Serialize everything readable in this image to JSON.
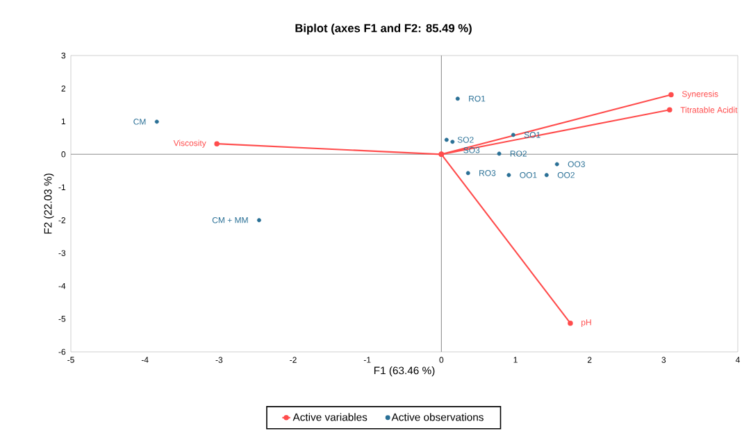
{
  "chart_data": {
    "type": "scatter",
    "title": "Biplot (axes F1 and F2: 85.49 %)",
    "xlabel": "F1 (63.46 %)",
    "ylabel": "F2 (22.03 %)",
    "xlim": [
      -5,
      4
    ],
    "ylim": [
      -6,
      3
    ],
    "xticks": [
      -5,
      -4,
      -3,
      -2,
      -1,
      0,
      1,
      2,
      3,
      4
    ],
    "yticks": [
      -6,
      -5,
      -4,
      -3,
      -2,
      -1,
      0,
      1,
      2,
      3
    ],
    "legend": "bottom",
    "marker": "circle",
    "series": [
      {
        "type": "line",
        "name": "Active variables",
        "color": "#ff4d4d",
        "x": [
          3.1,
          0,
          3.08,
          0,
          -3.03,
          0,
          1.74
        ],
        "values": [
          1.81,
          0,
          1.35,
          0,
          0.32,
          0,
          -5.13
        ],
        "value_labels": [
          "Syneresis",
          null,
          "Titratable Acidit",
          null,
          "Viscosity",
          null,
          "pH"
        ]
      },
      {
        "type": "scatter",
        "name": "Active observations",
        "color": "#2a7096",
        "x": [
          -3.84,
          -2.46,
          0.22,
          0.07,
          0.15,
          0.97,
          0.78,
          1.56,
          0.36,
          0.91,
          1.42
        ],
        "values": [
          0.99,
          -2.0,
          1.69,
          0.44,
          0.38,
          0.59,
          0.02,
          -0.3,
          -0.57,
          -0.63,
          -0.63
        ],
        "value_labels": [
          "CM",
          "CM + MM",
          "RO1",
          "SO2",
          "SO3",
          "SO1",
          "RO2",
          "OO3",
          "RO3",
          "OO1",
          "OO2"
        ]
      }
    ]
  }
}
